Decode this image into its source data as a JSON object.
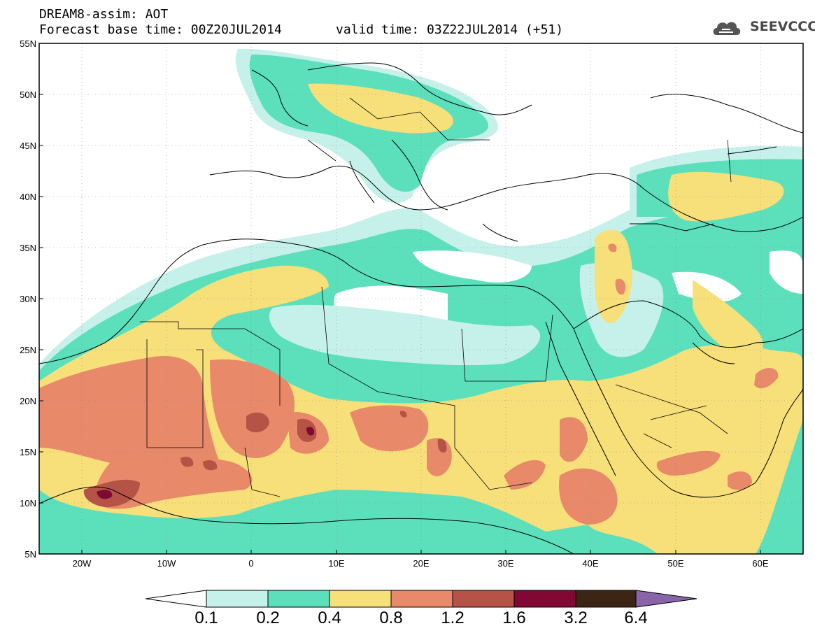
{
  "header": {
    "title": "DREAM8-assim: AOT",
    "base_time": "Forecast base time: 00Z20JUL2014",
    "valid_time": "valid time: 03Z22JUL2014 (+51)"
  },
  "logo": {
    "text": "SEEVCCC",
    "icon": "cloud-icon"
  },
  "axes": {
    "lat_labels": [
      "55N",
      "50N",
      "45N",
      "40N",
      "35N",
      "30N",
      "25N",
      "20N",
      "15N",
      "10N",
      "5N"
    ],
    "lon_labels": [
      "20W",
      "10W",
      "0",
      "10E",
      "20E",
      "30E",
      "40E",
      "50E",
      "60E"
    ]
  },
  "colorbar": {
    "labels": [
      "0.1",
      "0.2",
      "0.4",
      "0.8",
      "1.2",
      "1.6",
      "3.2",
      "6.4"
    ],
    "colors": [
      "#ffffff",
      "#c6f1eb",
      "#5ce0bc",
      "#f7e079",
      "#e8896a",
      "#b55346",
      "#800832",
      "#3d2515",
      "#8a64a8"
    ]
  },
  "palette": {
    "c01": "#c6f1eb",
    "c02": "#5ce0bc",
    "c04": "#f7e079",
    "c08": "#e8896a",
    "c12": "#b55346",
    "c16": "#800832"
  }
}
